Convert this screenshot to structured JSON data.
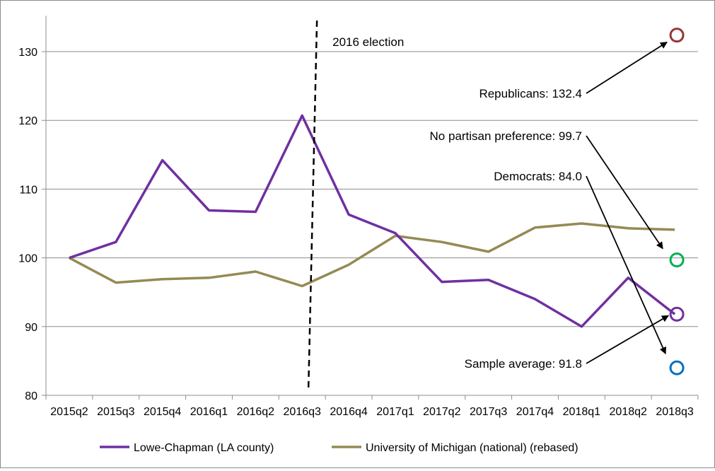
{
  "chart_data": {
    "type": "line",
    "categories": [
      "2015q2",
      "2015q3",
      "2015q4",
      "2016q1",
      "2016q2",
      "2016q3",
      "2016q4",
      "2017q1",
      "2017q2",
      "2017q3",
      "2017q4",
      "2018q1",
      "2018q2",
      "2018q3"
    ],
    "series": [
      {
        "name": "Lowe-Chapman (LA county)",
        "color": "#7030a0",
        "values": [
          100,
          102.3,
          114.2,
          106.9,
          106.7,
          120.7,
          106.3,
          103.6,
          96.5,
          96.8,
          94.0,
          90.0,
          97.1,
          91.8
        ]
      },
      {
        "name": "University of Michigan (national) (rebased)",
        "color": "#948a54",
        "values": [
          100,
          96.4,
          96.9,
          97.1,
          98.0,
          95.9,
          99.0,
          103.2,
          102.3,
          100.9,
          104.4,
          105.0,
          104.3,
          104.1
        ]
      }
    ],
    "ylim": [
      80,
      135
    ],
    "yticks": [
      "80",
      "90",
      "100",
      "110",
      "120",
      "130"
    ],
    "grid": true,
    "legend_position": "bottom",
    "vline": {
      "between": [
        "2016q3",
        "2016q4"
      ],
      "label": "2016 election"
    },
    "points": [
      {
        "label": "Republicans: 132.4",
        "value": 132.4,
        "color": "#953735"
      },
      {
        "label": "No partisan preference: 99.7",
        "value": 99.7,
        "color": "#00b050"
      },
      {
        "label": "Democrats: 84.0",
        "value": 84.0,
        "color": "#0070c0"
      },
      {
        "label": "Sample average: 91.8",
        "value": 91.8,
        "color": "#7030a0"
      }
    ]
  }
}
